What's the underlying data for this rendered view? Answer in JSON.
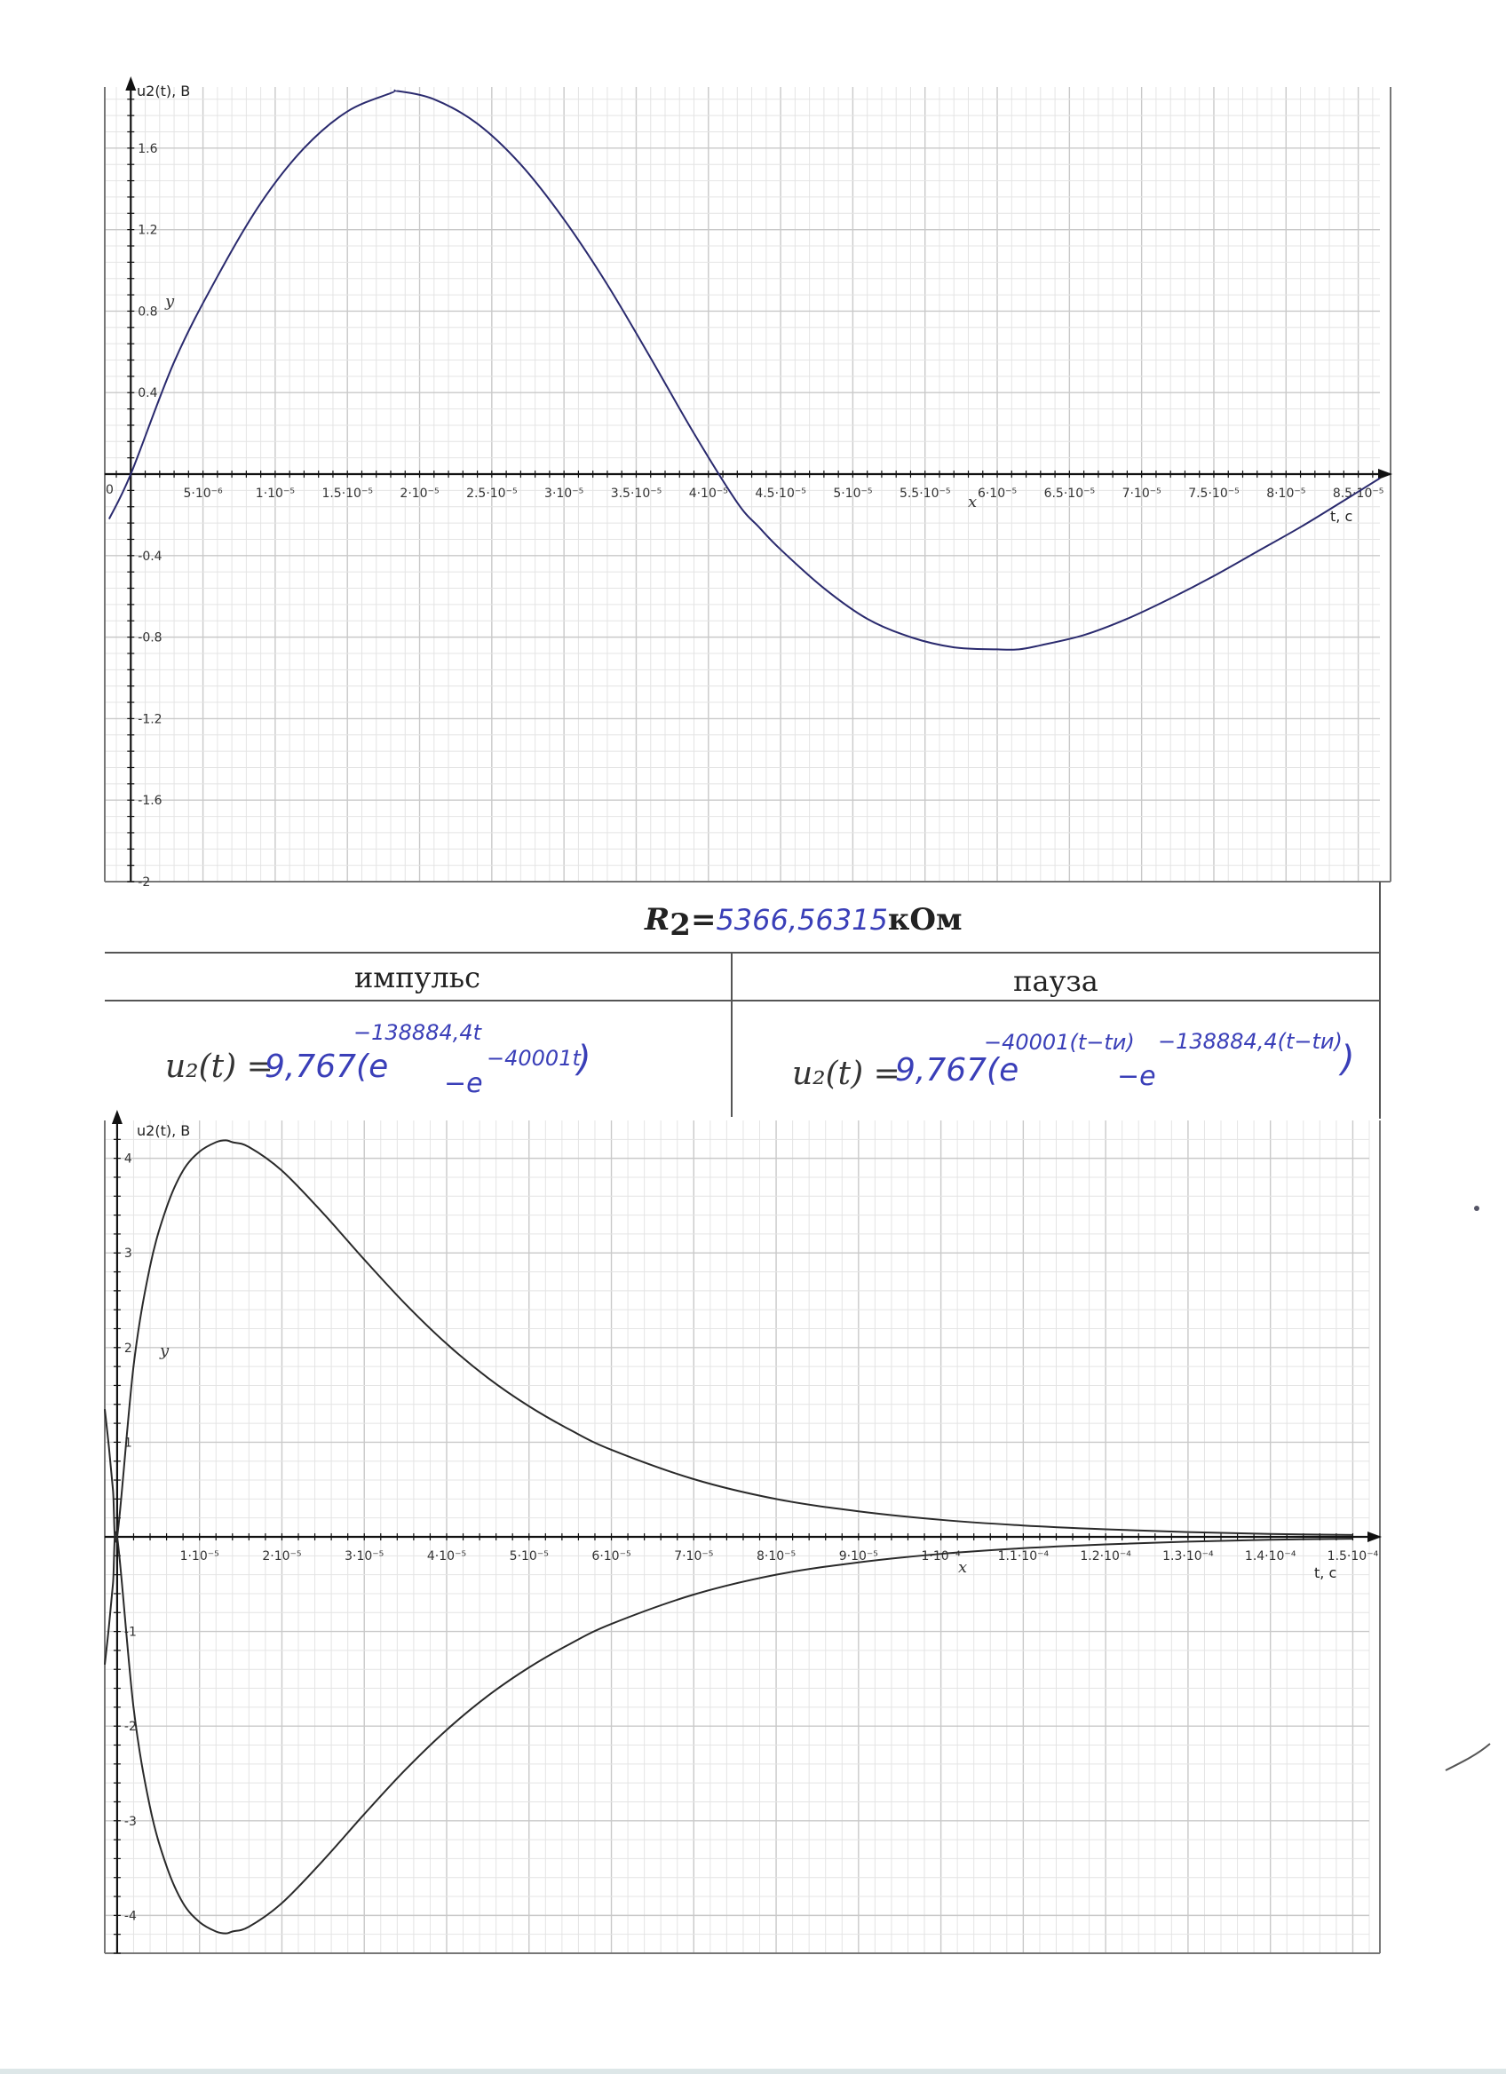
{
  "chart_data": [
    {
      "type": "line",
      "ylabel": "u2(t), В",
      "xlabel": "t, c",
      "x_axis_name": "x",
      "y_axis_name": "y",
      "xlim": [
        -1.8e-06,
        8.65e-05
      ],
      "ylim": [
        -2.0,
        1.9
      ],
      "x_ticks": [
        "5·10⁻⁶",
        "1·10⁻⁵",
        "1.5·10⁻⁵",
        "2·10⁻⁵",
        "2.5·10⁻⁵",
        "3·10⁻⁵",
        "3.5·10⁻⁵",
        "4·10⁻⁵",
        "4.5·10⁻⁵",
        "5·10⁻⁵",
        "5.5·10⁻⁵",
        "6·10⁻⁵",
        "6.5·10⁻⁵",
        "7·10⁻⁵",
        "7.5·10⁻⁵",
        "8·10⁻⁵",
        "8.5·10⁻⁵"
      ],
      "x_tick_values": [
        5e-06,
        1e-05,
        1.5e-05,
        2e-05,
        2.5e-05,
        3e-05,
        3.5e-05,
        4e-05,
        4.5e-05,
        5e-05,
        5.5e-05,
        6e-05,
        6.5e-05,
        7e-05,
        7.5e-05,
        8e-05,
        8.5e-05
      ],
      "y_ticks": [
        "1.6",
        "1.2",
        "0.8",
        "0.4",
        "-0.4",
        "-0.8",
        "-1.2",
        "-1.6",
        "-2"
      ],
      "y_tick_values": [
        1.6,
        1.2,
        0.8,
        0.4,
        -0.4,
        -0.8,
        -1.2,
        -1.6,
        -2
      ],
      "origin_label": "0",
      "series": [
        {
          "x": [
            -1.5e-06,
            0,
            3e-06,
            6e-06,
            9e-06,
            1.2e-05,
            1.5e-05,
            1.8e-05,
            1.85e-05,
            2.1e-05,
            2.4e-05,
            2.7e-05,
            3e-05,
            3.3e-05,
            3.6e-05,
            3.9e-05,
            4.2e-05,
            4.35e-05,
            4.5e-05,
            4.8e-05,
            5.1e-05,
            5.4e-05,
            5.7e-05,
            6e-05,
            6.15e-05,
            6.3e-05,
            6.6e-05,
            6.9e-05,
            7.2e-05,
            7.5e-05,
            7.8e-05,
            8.1e-05,
            8.4e-05,
            8.65e-05
          ],
          "y": [
            -0.22,
            0.0,
            0.55,
            0.97,
            1.33,
            1.6,
            1.78,
            1.87,
            1.88,
            1.84,
            1.72,
            1.52,
            1.25,
            0.93,
            0.57,
            0.2,
            -0.14,
            -0.26,
            -0.37,
            -0.56,
            -0.71,
            -0.8,
            -0.85,
            -0.86,
            -0.86,
            -0.84,
            -0.79,
            -0.71,
            -0.61,
            -0.5,
            -0.38,
            -0.26,
            -0.13,
            -0.02
          ]
        }
      ]
    },
    {
      "type": "line",
      "ylabel": "u2(t), В",
      "xlabel": "t, c",
      "x_axis_name": "x",
      "y_axis_name": "y",
      "xlim": [
        -1.5e-06,
        0.000152
      ],
      "ylim": [
        -4.4,
        4.4
      ],
      "x_ticks": [
        "1·10⁻⁵",
        "2·10⁻⁵",
        "3·10⁻⁵",
        "4·10⁻⁵",
        "5·10⁻⁵",
        "6·10⁻⁵",
        "7·10⁻⁵",
        "8·10⁻⁵",
        "9·10⁻⁵",
        "1·10⁻⁴",
        "1.1·10⁻⁴",
        "1.2·10⁻⁴",
        "1.3·10⁻⁴",
        "1.4·10⁻⁴",
        "1.5·10⁻⁴"
      ],
      "x_tick_values": [
        1e-05,
        2e-05,
        3e-05,
        4e-05,
        5e-05,
        6e-05,
        7e-05,
        8e-05,
        9e-05,
        0.0001,
        0.00011,
        0.00012,
        0.00013,
        0.00014,
        0.00015
      ],
      "y_ticks": [
        "4",
        "3",
        "2",
        "1",
        "-1",
        "-2",
        "-3",
        "-4"
      ],
      "y_tick_values": [
        4,
        3,
        2,
        1,
        -1,
        -2,
        -3,
        -4
      ],
      "series": [
        {
          "x": [
            -1.5e-06,
            -1e-06,
            -5e-07,
            0,
            2e-06,
            4e-06,
            6e-06,
            8e-06,
            1e-05,
            1.2e-05,
            1.32e-05,
            1.4e-05,
            1.6e-05,
            2e-05,
            2.5e-05,
            3e-05,
            3.5e-05,
            4e-05,
            4.5e-05,
            5e-05,
            5.5e-05,
            6e-05,
            7e-05,
            8e-05,
            9e-05,
            0.0001,
            0.00011,
            0.00012,
            0.00013,
            0.00014,
            0.00015
          ],
          "y": [
            1.35,
            0.95,
            0.49,
            0,
            1.81,
            2.86,
            3.48,
            3.87,
            4.07,
            4.17,
            4.19,
            4.17,
            4.12,
            3.87,
            3.42,
            2.93,
            2.46,
            2.04,
            1.68,
            1.38,
            1.13,
            0.92,
            0.61,
            0.4,
            0.27,
            0.18,
            0.12,
            0.08,
            0.05,
            0.03,
            0.02
          ]
        },
        {
          "x": [
            -1.5e-06,
            -1e-06,
            -5e-07,
            0,
            2e-06,
            4e-06,
            6e-06,
            8e-06,
            1e-05,
            1.2e-05,
            1.32e-05,
            1.4e-05,
            1.6e-05,
            2e-05,
            2.5e-05,
            3e-05,
            3.5e-05,
            4e-05,
            4.5e-05,
            5e-05,
            5.5e-05,
            6e-05,
            7e-05,
            8e-05,
            9e-05,
            0.0001,
            0.00011,
            0.00012,
            0.00013,
            0.00014,
            0.00015
          ],
          "y": [
            -1.35,
            -0.95,
            -0.49,
            0,
            -1.81,
            -2.86,
            -3.48,
            -3.87,
            -4.07,
            -4.17,
            -4.19,
            -4.17,
            -4.12,
            -3.87,
            -3.42,
            -2.93,
            -2.46,
            -2.04,
            -1.68,
            -1.38,
            -1.13,
            -0.92,
            -0.61,
            -0.4,
            -0.27,
            -0.18,
            -0.12,
            -0.08,
            -0.05,
            -0.03,
            -0.02
          ]
        }
      ]
    }
  ],
  "table": {
    "r2_label": "R",
    "r2_sub": "2",
    "r2_eq": "=",
    "r2_value": "5366,56315",
    "r2_unit_prefix": "к",
    "r2_unit": "Ом",
    "col_impulse": "импульс",
    "col_pause": "пауза",
    "formula_left": "u₂(t) =",
    "formula_right": "u₂(t) =",
    "impulse_coef": "9,767(e",
    "impulse_exp1": "−138884,4t",
    "impulse_exp2": "−40001t",
    "impulse_minus_e": "−e",
    "impulse_close": ")",
    "pause_coef": "9,767(e",
    "pause_exp1": "−40001(t−tи)",
    "pause_exp2": "−138884,4(t−tи)",
    "pause_minus_e": "−e",
    "pause_close": ")"
  },
  "colors": {
    "curve_top": "#2a2a6e",
    "curve_bottom": "#2a2a2a",
    "ink": "#3a3fb8",
    "grid_major": "#c9c9c9",
    "grid_minor": "#e4e4e4"
  }
}
